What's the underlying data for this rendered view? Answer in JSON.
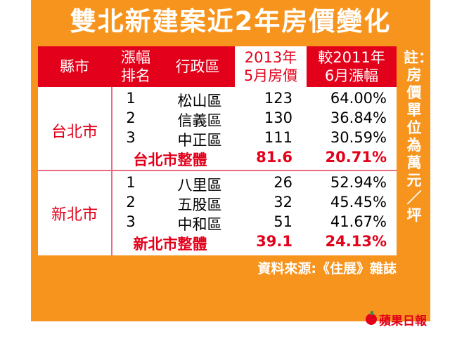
{
  "title": "雙北新建案近2年房價變化",
  "table": {
    "headers": {
      "city": "縣市",
      "rank_line1": "漲幅",
      "rank_line2": "排名",
      "district": "行政區",
      "price_line1": "2013年",
      "price_line2": "5月房價",
      "change_line1": "較2011年",
      "change_line2": "6月漲幅"
    },
    "groups": [
      {
        "city": "台北市",
        "rows": [
          {
            "rank": "1",
            "district": "松山區",
            "price": "123",
            "change": "64.00%"
          },
          {
            "rank": "2",
            "district": "信義區",
            "price": "130",
            "change": "36.84%"
          },
          {
            "rank": "3",
            "district": "中正區",
            "price": "111",
            "change": "30.59%"
          }
        ],
        "total": {
          "label": "台北市整體",
          "price": "81.6",
          "change": "20.71%"
        }
      },
      {
        "city": "新北市",
        "rows": [
          {
            "rank": "1",
            "district": "八里區",
            "price": "26",
            "change": "52.94%"
          },
          {
            "rank": "2",
            "district": "五股區",
            "price": "32",
            "change": "45.45%"
          },
          {
            "rank": "3",
            "district": "中和區",
            "price": "51",
            "change": "41.67%"
          }
        ],
        "total": {
          "label": "新北市整體",
          "price": "39.1",
          "change": "24.13%"
        }
      }
    ]
  },
  "note": "註：房價單位為萬元／坪",
  "source": "資料來源:《住展》雜誌",
  "logo": "蘋果日報",
  "colors": {
    "background": "#f7941d",
    "red": "#e2001a",
    "divider": "#ea6a84"
  }
}
